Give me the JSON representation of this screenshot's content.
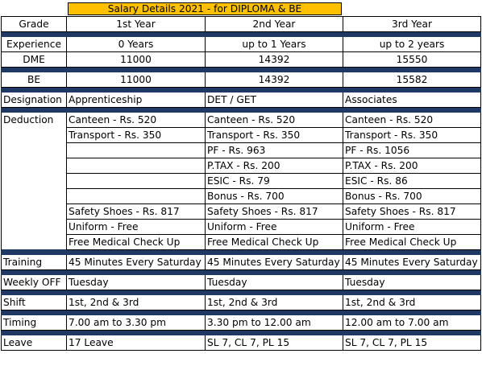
{
  "title": "Salary Details 2021 - for DIPLOMA & BE",
  "header": {
    "grade": "Grade",
    "y1": "1st Year",
    "y2": "2nd Year",
    "y3": "3rd Year"
  },
  "experience": {
    "label": "Experience",
    "y1": "0 Years",
    "y2": "up to 1 Years",
    "y3": "up to 2 years"
  },
  "dme": {
    "label": "DME",
    "y1": "11000",
    "y2": "14392",
    "y3": "15550"
  },
  "be": {
    "label": "BE",
    "y1": "11000",
    "y2": "14392",
    "y3": "15582"
  },
  "designation": {
    "label": "Designation",
    "y1": "Apprenticeship",
    "y2": "DET / GET",
    "y3": "Associates"
  },
  "deduction": {
    "label": "Deduction",
    "rows": [
      [
        "Canteen - Rs. 520",
        "Canteen - Rs. 520",
        "Canteen - Rs. 520"
      ],
      [
        "Transport - Rs. 350",
        "Transport - Rs. 350",
        "Transport - Rs. 350"
      ],
      [
        "",
        "PF - Rs. 963",
        "PF - Rs. 1056"
      ],
      [
        "",
        "P.TAX - Rs. 200",
        "P.TAX - Rs. 200"
      ],
      [
        "",
        "ESIC - Rs. 79",
        "ESIC - Rs. 86"
      ],
      [
        "",
        "Bonus - Rs. 700",
        "Bonus - Rs. 700"
      ],
      [
        "Safety Shoes - Rs. 817",
        "Safety Shoes - Rs. 817",
        "Safety Shoes - Rs. 817"
      ],
      [
        "Uniform - Free",
        "Uniform - Free",
        "Uniform - Free"
      ],
      [
        "Free Medical Check Up",
        "Free Medical Check Up",
        "Free Medical Check Up"
      ]
    ]
  },
  "training": {
    "label": "Training",
    "y1": "45 Minutes Every Saturday",
    "y2": "45 Minutes Every Saturday",
    "y3": "45 Minutes Every Saturday"
  },
  "weekly_off": {
    "label": "Weekly OFF",
    "y1": "Tuesday",
    "y2": "Tuesday",
    "y3": "Tuesday"
  },
  "shift": {
    "label": "Shift",
    "y1": "1st, 2nd & 3rd",
    "y2": "1st, 2nd & 3rd",
    "y3": "1st, 2nd & 3rd"
  },
  "timing": {
    "label": "Timing",
    "y1": "7.00 am to 3.30 pm",
    "y2": "3.30 pm to 12.00 am",
    "y3": "12.00 am to 7.00 am"
  },
  "leave": {
    "label": "Leave",
    "y1": "17 Leave",
    "y2": "SL 7, CL 7, PL 15",
    "y3": "SL 7, CL 7, PL 15"
  }
}
